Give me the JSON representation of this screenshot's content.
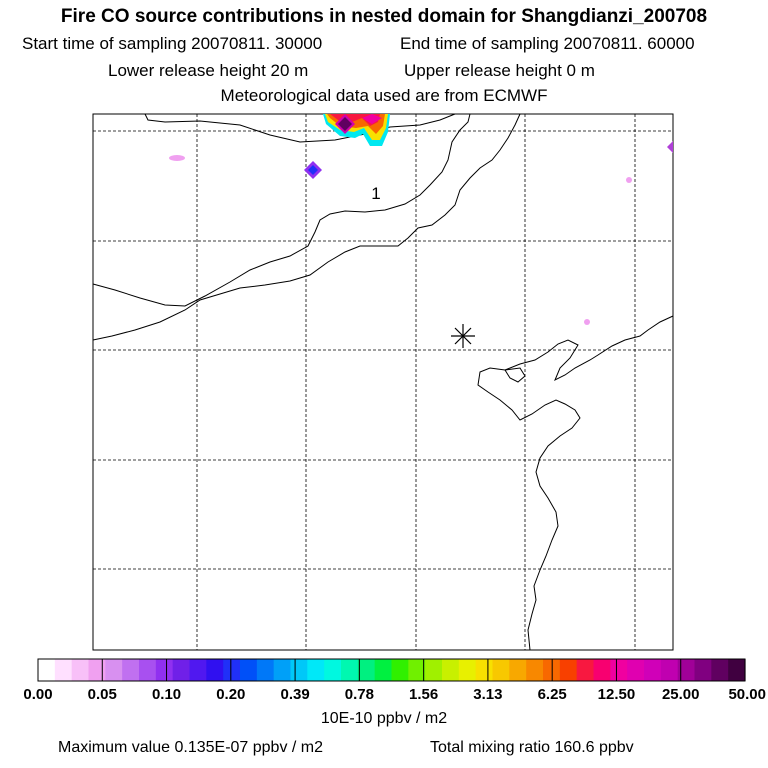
{
  "title": "Fire CO source contributions in nested domain for Shangdianzi_200708",
  "header": {
    "start_time": "Start time of sampling 20070811. 30000",
    "end_time": "End time of sampling 20070811. 60000",
    "lower_release": "Lower release height   20 m",
    "upper_release": "Upper release height    0 m",
    "met_data": "Meteorological data used are from ECMWF"
  },
  "map": {
    "marker_label": "1",
    "grid_lines": "dashed"
  },
  "colorbar": {
    "labels": [
      "0.00",
      "0.05",
      "0.10",
      "0.20",
      "0.39",
      "0.78",
      "1.56",
      "3.13",
      "6.25",
      "12.50",
      "25.00",
      "50.00"
    ],
    "colors": [
      "#ffffff",
      "#ffe0ff",
      "#f8c0f8",
      "#f0a0f0",
      "#d890f0",
      "#c070f0",
      "#a850f0",
      "#9030f0",
      "#7020e8",
      "#5018f0",
      "#3010f0",
      "#2030f8",
      "#0050f8",
      "#0078f8",
      "#00a0f8",
      "#00c8f8",
      "#00e8f8",
      "#00f8e0",
      "#00f8b0",
      "#00f080",
      "#00f040",
      "#30f000",
      "#70f000",
      "#a0f000",
      "#c8f000",
      "#e8f000",
      "#f8e000",
      "#f8c800",
      "#f8a800",
      "#f88800",
      "#f86800",
      "#f84000",
      "#f81840",
      "#f80070",
      "#f000a0",
      "#e000b0",
      "#d000b8",
      "#c000b0",
      "#a00098",
      "#800080",
      "#600060",
      "#400040"
    ],
    "units": "10E-10 ppbv / m2"
  },
  "footer": {
    "max_value": "Maximum value  0.135E-07 ppbv / m2",
    "total_mixing": "Total mixing ratio      160.6 ppbv"
  }
}
